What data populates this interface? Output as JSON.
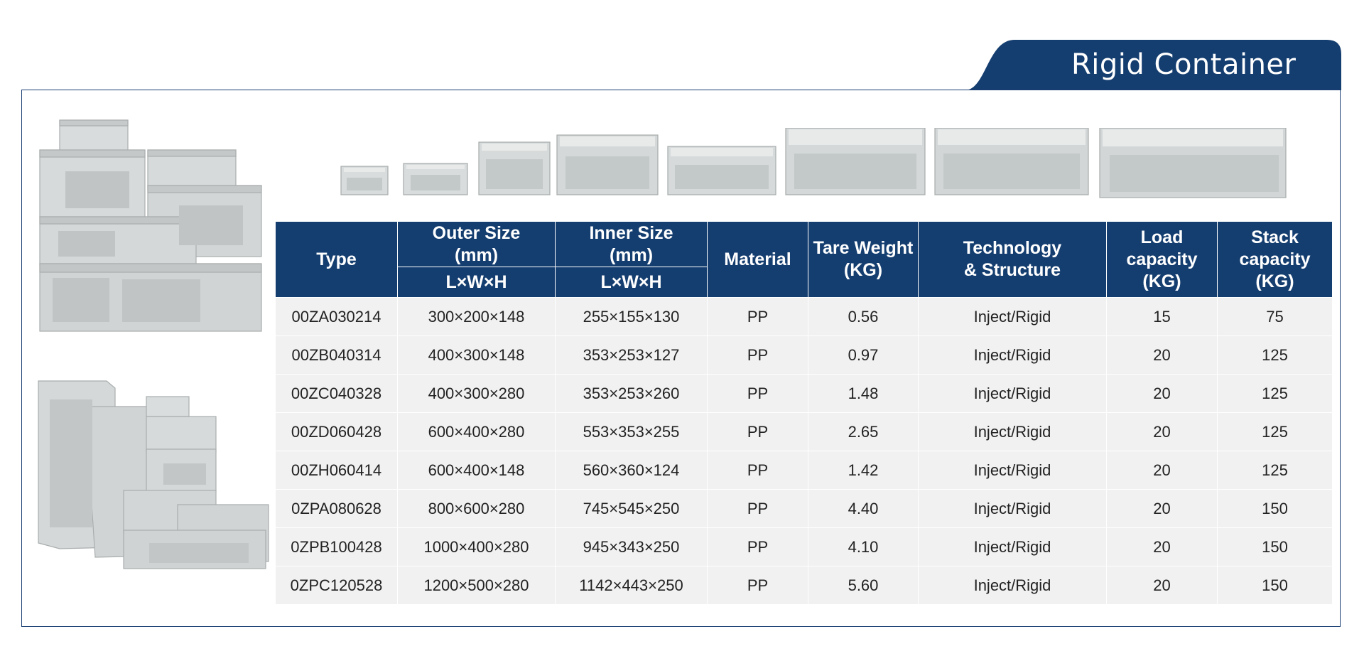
{
  "header": {
    "title": "Rigid Container"
  },
  "colors": {
    "navy": "#153e70",
    "row_bg": "#f1f1f1",
    "crate": "#d8dcdc"
  },
  "table": {
    "headers": {
      "type": "Type",
      "outer_size": "Outer Size (mm)",
      "outer_dims": "L×W×H",
      "inner_size": "Inner Size (mm)",
      "inner_dims": "L×W×H",
      "material": "Material",
      "tare_weight": "Tare Weight (KG)",
      "technology": "Technology & Structure",
      "load_capacity": "Load capacity (KG)",
      "stack_capacity": "Stack capacity (KG)"
    },
    "rows": [
      {
        "type": "00ZA030214",
        "outer": "300×200×148",
        "inner": "255×155×130",
        "material": "PP",
        "tare": "0.56",
        "tech": "Inject/Rigid",
        "load": "15",
        "stack": "75"
      },
      {
        "type": "00ZB040314",
        "outer": "400×300×148",
        "inner": "353×253×127",
        "material": "PP",
        "tare": "0.97",
        "tech": "Inject/Rigid",
        "load": "20",
        "stack": "125"
      },
      {
        "type": "00ZC040328",
        "outer": "400×300×280",
        "inner": "353×253×260",
        "material": "PP",
        "tare": "1.48",
        "tech": "Inject/Rigid",
        "load": "20",
        "stack": "125"
      },
      {
        "type": "00ZD060428",
        "outer": "600×400×280",
        "inner": "553×353×255",
        "material": "PP",
        "tare": "2.65",
        "tech": "Inject/Rigid",
        "load": "20",
        "stack": "125"
      },
      {
        "type": "00ZH060414",
        "outer": "600×400×148",
        "inner": "560×360×124",
        "material": "PP",
        "tare": "1.42",
        "tech": "Inject/Rigid",
        "load": "20",
        "stack": "125"
      },
      {
        "type": "0ZPA080628",
        "outer": "800×600×280",
        "inner": "745×545×250",
        "material": "PP",
        "tare": "4.40",
        "tech": "Inject/Rigid",
        "load": "20",
        "stack": "150"
      },
      {
        "type": "0ZPB100428",
        "outer": "1000×400×280",
        "inner": "945×343×250",
        "material": "PP",
        "tare": "4.10",
        "tech": "Inject/Rigid",
        "load": "20",
        "stack": "150"
      },
      {
        "type": "0ZPC120528",
        "outer": "1200×500×280",
        "inner": "1142×443×250",
        "material": "PP",
        "tare": "5.60",
        "tech": "Inject/Rigid",
        "load": "20",
        "stack": "150"
      }
    ]
  }
}
